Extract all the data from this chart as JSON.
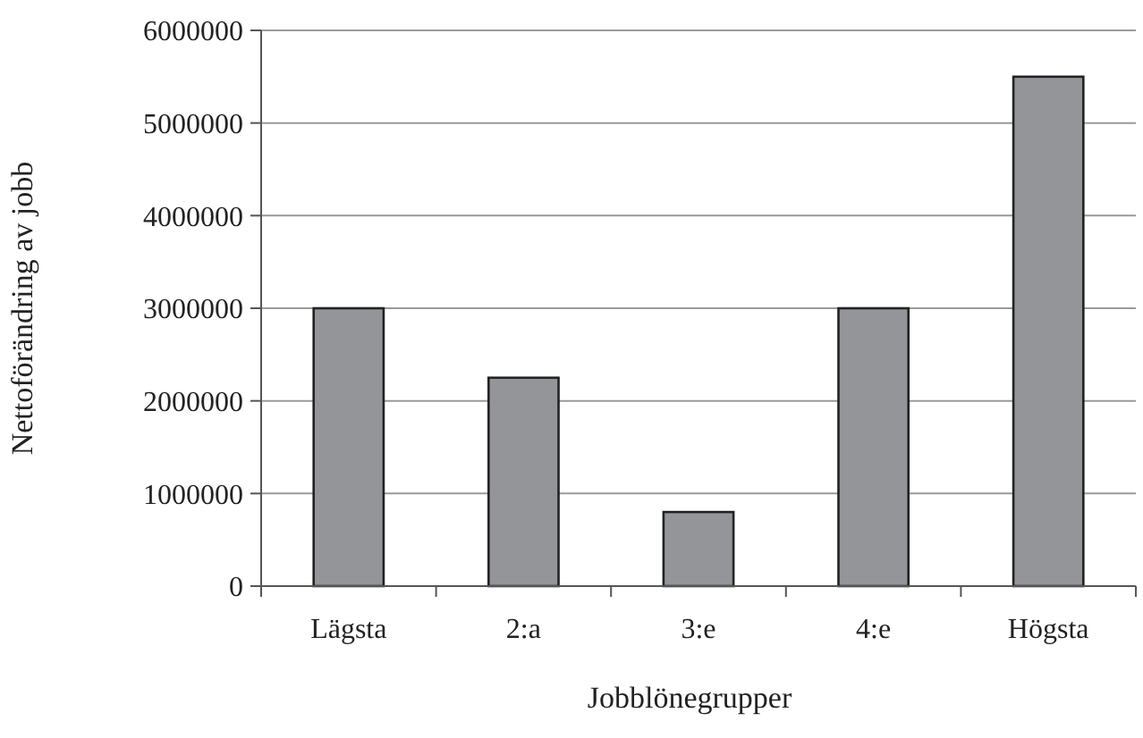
{
  "chart_data": {
    "type": "bar",
    "xlabel": "Jobblönegrupper",
    "ylabel": "Nettoförändring av jobb",
    "categories": [
      "Lägsta",
      "2:a",
      "3:e",
      "4:e",
      "Högsta"
    ],
    "values": [
      3000000,
      2250000,
      800000,
      3000000,
      5500000
    ],
    "color": "#939598",
    "ylim": [
      0,
      6000000
    ],
    "yticks": [
      0,
      1000000,
      2000000,
      3000000,
      4000000,
      5000000,
      6000000
    ],
    "grid": "y"
  }
}
